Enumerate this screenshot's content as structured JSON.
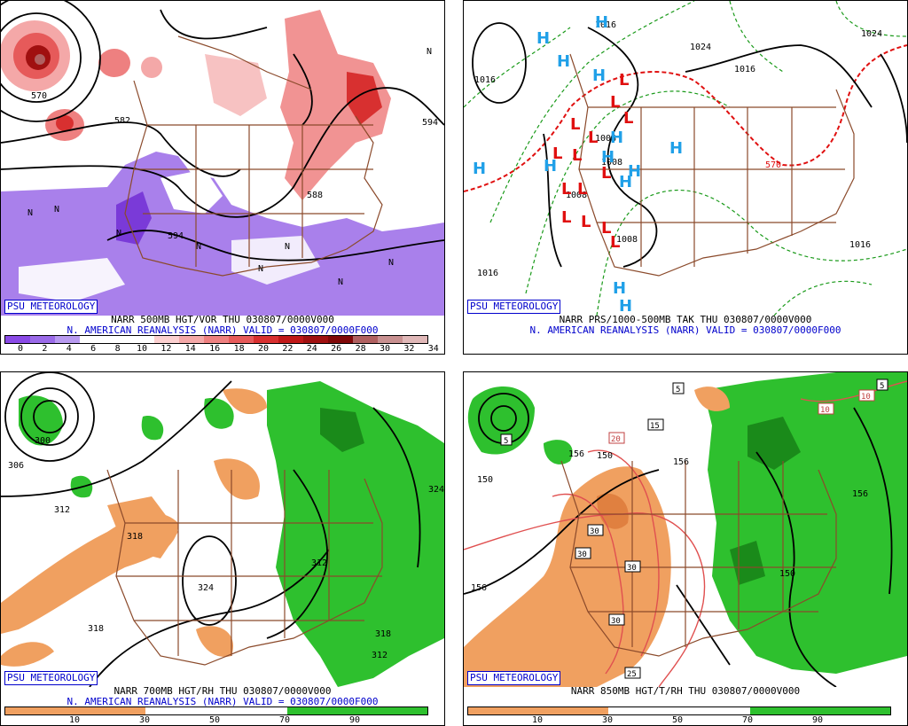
{
  "brand": "PSU METEOROLOGY",
  "colors": {
    "vort_neg": "#8a5ad8",
    "vort_pos": "#f08080",
    "vort_dark": "#c02020",
    "map": "#8b4a2b",
    "dry": "#f0a060",
    "moist": "#2ec02e",
    "high": "#20a0e8",
    "low": "#e01010",
    "thickness": "#1a9a1a",
    "temp": "#e05050"
  },
  "panels": {
    "p1": {
      "title_line1": "NARR 500MB HGT/VOR THU 030807/0000V000",
      "title_line2": "N. AMERICAN REANALYSIS (NARR) VALID = 030807/0000F000",
      "scale_labels": [
        "0",
        "2",
        "4",
        "6",
        "8",
        "10",
        "12",
        "14",
        "16",
        "18",
        "20",
        "22",
        "24",
        "26",
        "28",
        "30",
        "32",
        "34"
      ],
      "scale_colors": [
        "#8a4ae6",
        "#9a6ae8",
        "#b89af0",
        "#ffffff",
        "#ffffff",
        "#ffffff",
        "#fcd0d0",
        "#f4a8a8",
        "#ee8080",
        "#e65a5a",
        "#d83030",
        "#c01818",
        "#a01010",
        "#800808",
        "#b06060",
        "#c89090",
        "#e0b8b8"
      ],
      "labels": [
        "570",
        "582",
        "594",
        "588",
        "594",
        "N",
        "N",
        "N",
        "N",
        "N",
        "N",
        "N",
        "N",
        "N"
      ]
    },
    "p2": {
      "title_line1": "NARR PRS/1000-500MB TAK THU 030807/0000V000",
      "title_line2": "N. AMERICAN REANALYSIS (NARR) VALID = 030807/0000F000",
      "labels": [
        "1016",
        "1016",
        "1024",
        "1016",
        "1024",
        "1016",
        "1016",
        "1008",
        "1008",
        "1008",
        "1008",
        "570"
      ],
      "high": "H",
      "low": "L"
    },
    "p3": {
      "title_line1": "NARR 700MB HGT/RH THU 030807/0000V000",
      "title_line2": "N. AMERICAN REANALYSIS (NARR) VALID = 030807/0000F000",
      "scale_labels": [
        "10",
        "30",
        "50",
        "70",
        "90"
      ],
      "labels": [
        "300",
        "306",
        "312",
        "318",
        "324",
        "312",
        "318",
        "318",
        "324",
        "312"
      ]
    },
    "p4": {
      "title_line1": "NARR 850MB HGT/T/RH THU 030807/0000V000",
      "scale_labels": [
        "10",
        "30",
        "50",
        "70",
        "90"
      ],
      "labels": [
        "5",
        "5",
        "15",
        "20",
        "30",
        "30",
        "30",
        "30",
        "25",
        "10",
        "10",
        "5",
        "150",
        "156",
        "150",
        "156",
        "150",
        "156",
        "156"
      ]
    }
  }
}
